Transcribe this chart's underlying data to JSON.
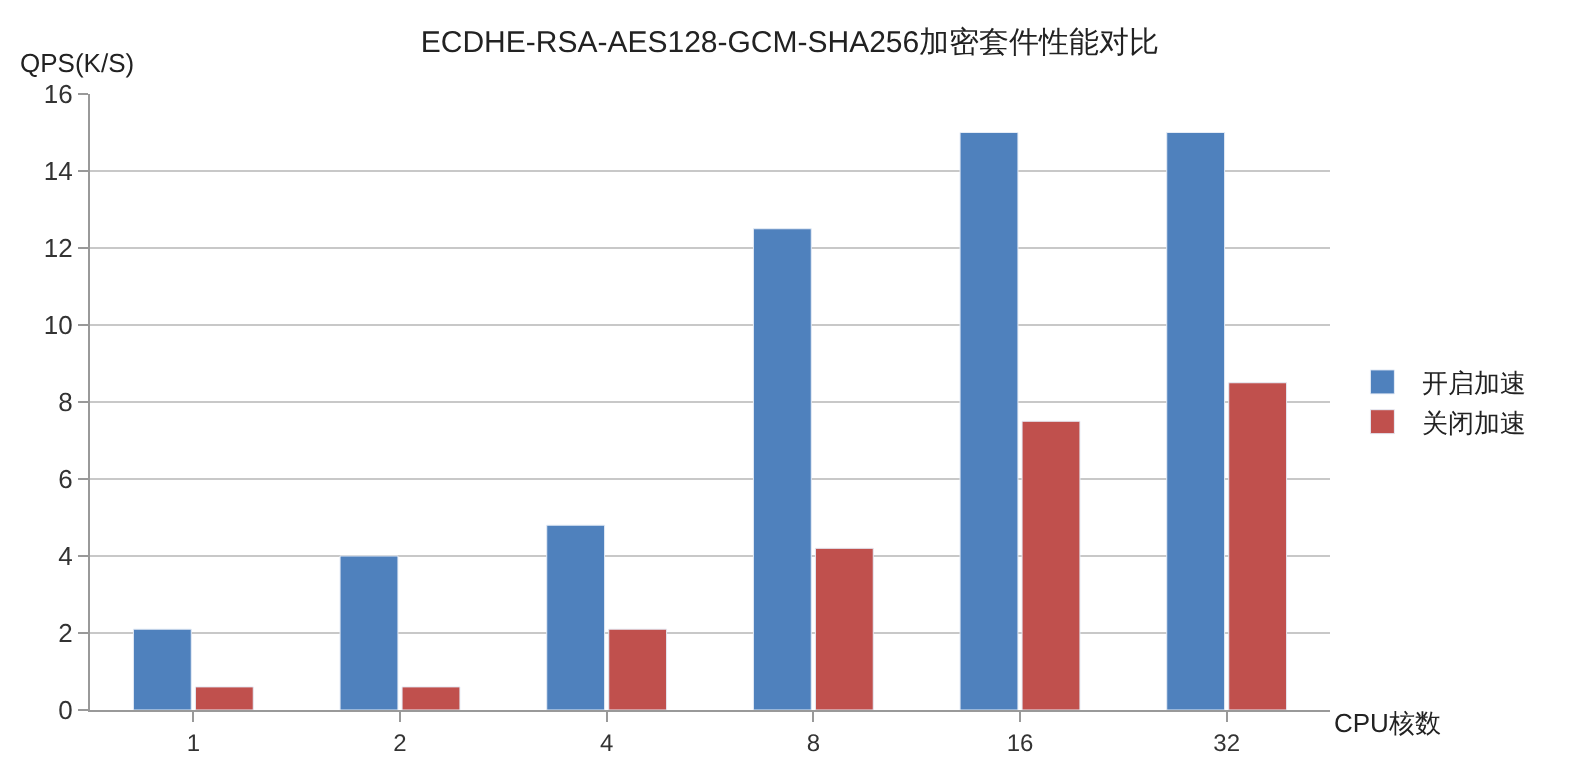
{
  "chart_data": {
    "type": "bar",
    "title": "ECDHE-RSA-AES128-GCM-SHA256加密套件性能对比",
    "xlabel": "CPU核数",
    "ylabel": "QPS(K/S)",
    "categories": [
      "1",
      "2",
      "4",
      "8",
      "16",
      "32"
    ],
    "series": [
      {
        "name": "开启加速",
        "color": "#4f81bd",
        "values": [
          2.1,
          4.0,
          4.8,
          12.5,
          15.0,
          15.0
        ]
      },
      {
        "name": "关闭加速",
        "color": "#c0504d",
        "values": [
          0.6,
          0.6,
          2.1,
          4.2,
          7.5,
          8.5
        ]
      }
    ],
    "ylim": [
      0,
      16
    ],
    "yticks": [
      0,
      2,
      4,
      6,
      8,
      10,
      12,
      14,
      16
    ],
    "grid": "y",
    "legend": "right"
  }
}
